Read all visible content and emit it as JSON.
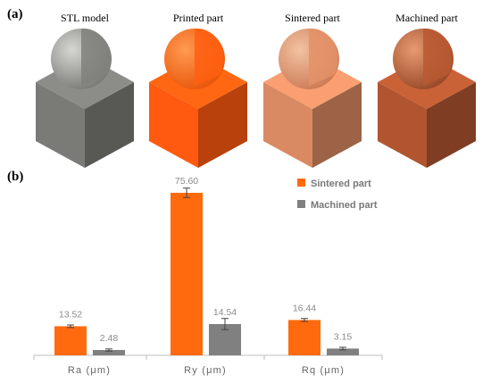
{
  "panel_a": {
    "label": "(a)",
    "parts": [
      {
        "label": "STL model",
        "color": "#7a7a76"
      },
      {
        "label": "Printed part",
        "color": "#ff5a10"
      },
      {
        "label": "Sintered part",
        "color": "#d98a62"
      },
      {
        "label": "Machined part",
        "color": "#b05530"
      }
    ]
  },
  "panel_b": {
    "label": "(b)"
  },
  "chart_data": {
    "type": "bar",
    "categories": [
      "Ra (μm)",
      "Ry (μm)",
      "Rq (μm)"
    ],
    "series": [
      {
        "name": "Sintered part",
        "color": "#ff6a0e",
        "values": [
          13.52,
          75.6,
          16.44
        ],
        "value_labels": [
          "13.52",
          "75.60",
          "16.44"
        ],
        "errors": [
          0.6,
          2.2,
          0.7
        ]
      },
      {
        "name": "Machined part",
        "color": "#808080",
        "values": [
          2.48,
          14.54,
          3.15
        ],
        "value_labels": [
          "2.48",
          "14.54",
          "3.15"
        ],
        "errors": [
          0.5,
          2.6,
          0.6
        ]
      }
    ],
    "ylim": [
      0,
      80
    ],
    "grid": false,
    "legend": "top-right"
  }
}
